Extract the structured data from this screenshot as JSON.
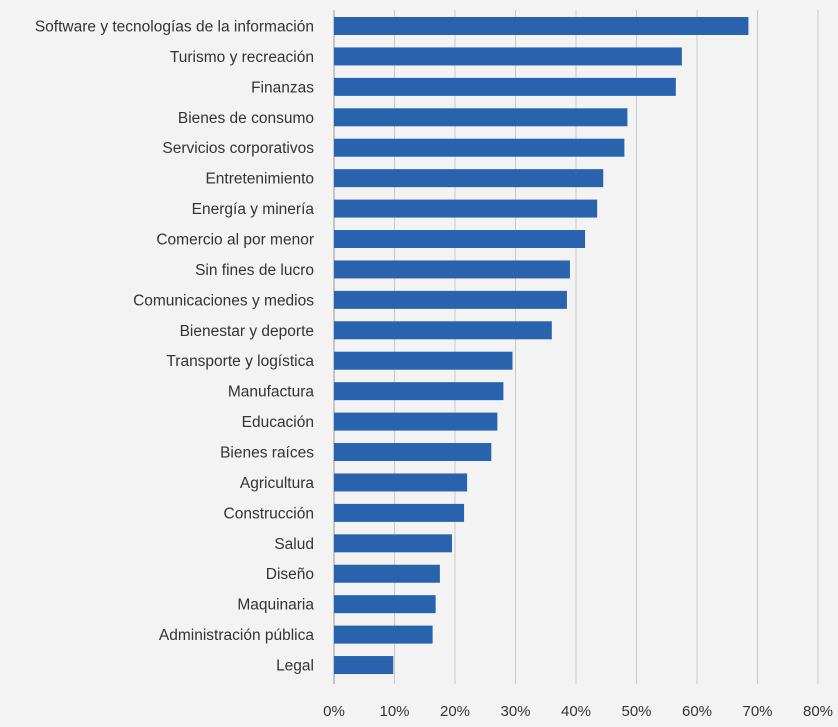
{
  "chart_data": {
    "type": "bar",
    "orientation": "horizontal",
    "title": "",
    "xlabel": "",
    "ylabel": "",
    "categories": [
      "Software y tecnologías de la información",
      "Turismo y recreación",
      "Finanzas",
      "Bienes de consumo",
      "Servicios corporativos",
      "Entretenimiento",
      "Energía y minería",
      "Comercio al por menor",
      "Sin fines de lucro",
      "Comunicaciones y medios",
      "Bienestar y deporte",
      "Transporte y logística",
      "Manufactura",
      "Educación",
      "Bienes raíces",
      "Agricultura",
      "Construcción",
      "Salud",
      "Diseño",
      "Maquinaria",
      "Administración pública",
      "Legal"
    ],
    "values": [
      68.5,
      57.5,
      56.5,
      48.5,
      48,
      44.5,
      43.5,
      41.5,
      39,
      38.5,
      36,
      29.5,
      28,
      27,
      26,
      22,
      21.5,
      19.5,
      17.5,
      16.8,
      16.3,
      9.8
    ],
    "xlim": [
      0,
      80
    ],
    "x_ticks": [
      "0%",
      "10%",
      "20%",
      "30%",
      "40%",
      "50%",
      "60%",
      "70%",
      "80%"
    ],
    "grid": true,
    "bar_color": "#2a63ad",
    "grid_color": "#c8c8c8",
    "background": "#f3f3f3"
  }
}
